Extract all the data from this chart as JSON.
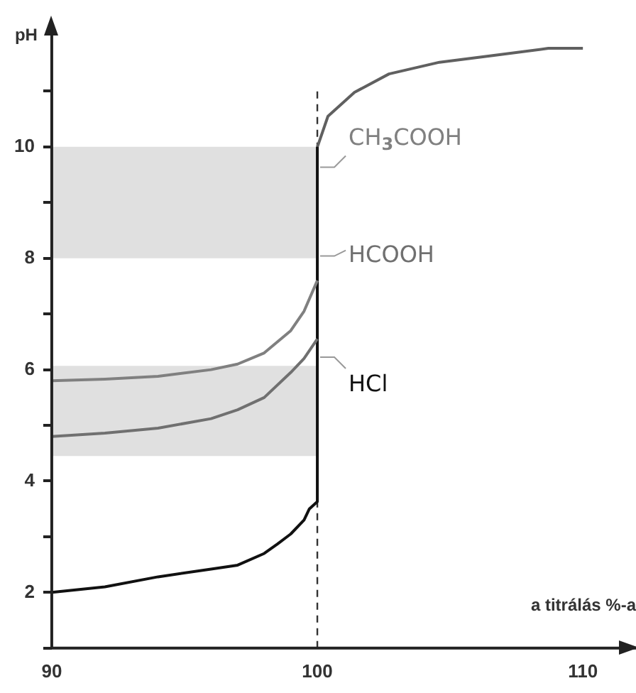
{
  "chart_data": {
    "type": "line",
    "xlabel": "a titrálás %-a",
    "ylabel": "pH",
    "xlim": [
      90,
      112
    ],
    "xticks": [
      90,
      100,
      110
    ],
    "ylim": [
      1,
      12
    ],
    "yticks": [
      {
        "value": 1,
        "label": null
      },
      2,
      {
        "value": 3,
        "label": null
      },
      4,
      {
        "value": 5,
        "label": null
      },
      6,
      {
        "value": 7,
        "label": null
      },
      8,
      {
        "value": 9,
        "label": null
      },
      10,
      {
        "value": 11,
        "label": null
      }
    ],
    "grid": false,
    "legend": false,
    "marker": "none",
    "line_style": "solid",
    "bands": [
      {
        "axis": "y",
        "from": 8,
        "to": 10,
        "color": "#e0e0e0"
      },
      {
        "axis": "y",
        "from": 4.45,
        "to": 6.07,
        "color": "#e0e0e0"
      }
    ],
    "ref_lines": [
      {
        "axis": "x",
        "value": 100,
        "color": "#333333",
        "line_style": "dashed"
      }
    ],
    "series": [
      {
        "name": "CH$_{3}$COOH",
        "color": "#808080",
        "x": [
          90,
          92,
          94,
          96,
          97,
          98,
          99,
          99.5,
          100
        ],
        "values": [
          5.8,
          5.83,
          5.88,
          6.0,
          6.1,
          6.3,
          6.7,
          7.05,
          7.6
        ]
      },
      {
        "name": "HCOOH",
        "color": "#707070",
        "x": [
          90,
          92,
          94,
          96,
          97,
          98,
          99,
          99.5,
          100
        ],
        "values": [
          4.8,
          4.86,
          4.95,
          5.12,
          5.28,
          5.5,
          5.95,
          6.2,
          6.55
        ]
      },
      {
        "name": "HCl",
        "color": "#111111",
        "x": [
          90,
          92,
          94,
          96,
          97,
          98,
          98.5,
          99,
          99.5,
          99.7,
          100,
          100
        ],
        "values": [
          2.0,
          2.1,
          2.28,
          2.42,
          2.49,
          2.7,
          2.87,
          3.05,
          3.3,
          3.5,
          3.63,
          10
        ]
      },
      {
        "color": "#606060",
        "x": [
          100,
          100.04,
          100.4,
          101.4,
          102.7,
          104.6,
          106.6,
          108.7,
          110.0
        ],
        "values": [
          10,
          10.05,
          10.55,
          10.98,
          11.31,
          11.52,
          11.64,
          11.77,
          11.77
        ]
      }
    ]
  }
}
